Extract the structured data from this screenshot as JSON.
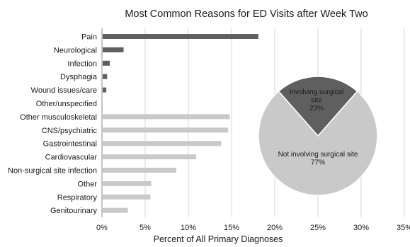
{
  "chart_data": [
    {
      "type": "bar",
      "orientation": "horizontal",
      "title": "Most Common Reasons for ED Visits after Week Two",
      "xlabel": "Percent of All Primary Diagnoses",
      "ylabel": "",
      "xlim": [
        0,
        35
      ],
      "x_ticks": [
        0,
        5,
        10,
        15,
        20,
        25,
        30,
        35
      ],
      "x_tick_labels": [
        "0%",
        "5%",
        "10%",
        "15%",
        "20%",
        "25%",
        "30%",
        "35%"
      ],
      "grid": "vertical",
      "categories": [
        "Pain",
        "Neurological",
        "Infection",
        "Dysphagia",
        "Wound issues/care",
        "Other/unspecified",
        "Other musculoskeletal",
        "CNS/psychiatric",
        "Gastrointestinal",
        "Cardiovascular",
        "Non-surgical site infection",
        "Other",
        "Respiratory",
        "Genitourinary"
      ],
      "values": [
        18.1,
        2.5,
        0.9,
        0.6,
        0.5,
        0,
        14.8,
        14.6,
        13.8,
        10.9,
        8.6,
        5.7,
        5.6,
        3.0
      ],
      "bar_groups": [
        "surgical",
        "surgical",
        "surgical",
        "surgical",
        "surgical",
        "surgical",
        "non-surgical",
        "non-surgical",
        "non-surgical",
        "non-surgical",
        "non-surgical",
        "non-surgical",
        "non-surgical",
        "non-surgical"
      ],
      "colors": {
        "surgical": "#5f5f5f",
        "non-surgical": "#c9c9c9",
        "grid": "#d4d4d4",
        "axis": "#8a8a8a"
      }
    },
    {
      "type": "pie",
      "slices": [
        {
          "label": "Involving surgical site",
          "value_label": "23%",
          "value": 23,
          "color": "#5f5f5f"
        },
        {
          "label": "Not involving surgical site",
          "value_label": "77%",
          "value": 77,
          "color": "#c9c9c9"
        }
      ]
    }
  ]
}
